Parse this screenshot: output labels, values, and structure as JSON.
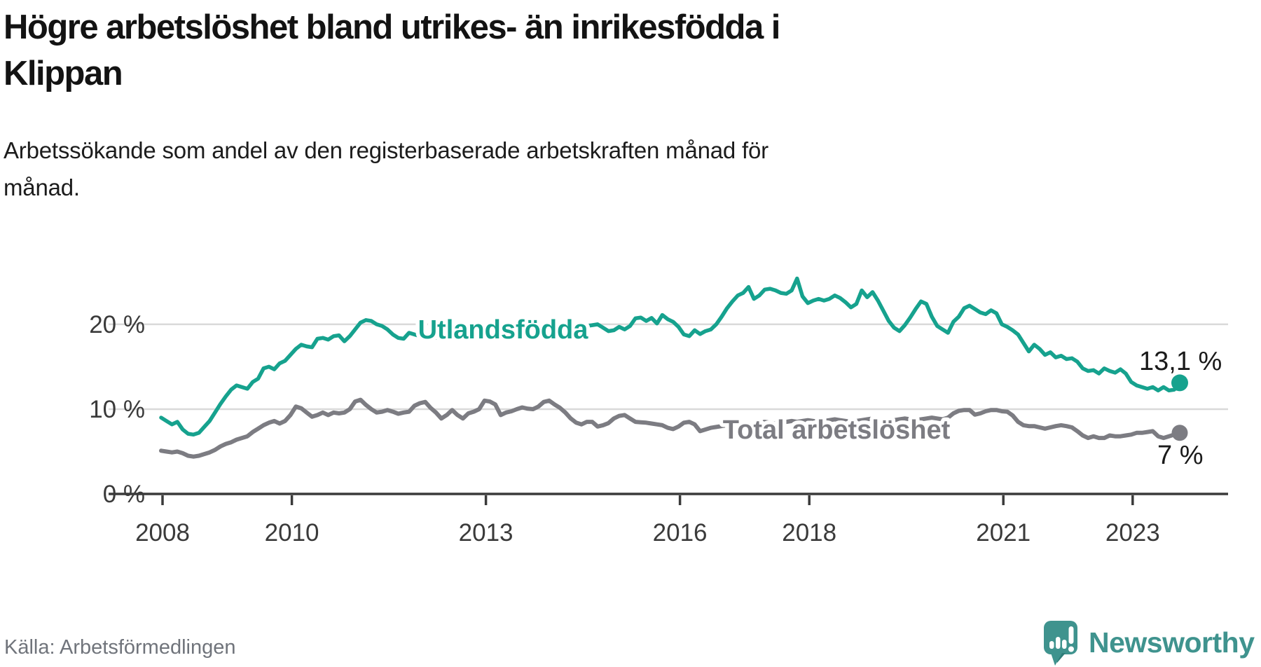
{
  "title": {
    "lines": [
      "Högre arbetslöshet bland utrikes- än inrikesfödda i",
      "Klippan"
    ]
  },
  "subtitle": {
    "lines": [
      "Arbetssökande som andel av den registerbaserade arbetskraften månad för",
      "månad."
    ]
  },
  "source_text": "Källa: Arbetsförmedlingen",
  "logo": {
    "text": "Newsworthy",
    "color": "#3f938e"
  },
  "chart_data": {
    "type": "line",
    "title": "Högre arbetslöshet bland utrikes- än inrikesfödda i Klippan",
    "subtitle": "Arbetssökande som andel av den registerbaserade arbetskraften månad för månad.",
    "frequency": "monthly",
    "x_start": "2008-01",
    "x_end": "2023-10",
    "x_ticks": [
      2008,
      2010,
      2013,
      2016,
      2018,
      2021,
      2023
    ],
    "y_ticks": [
      {
        "value": 0,
        "label": "0 %"
      },
      {
        "value": 10,
        "label": "10 %"
      },
      {
        "value": 20,
        "label": "20 %"
      }
    ],
    "ylim": [
      0,
      28
    ],
    "grid": "horizontal",
    "axis_color": "#3a3a3a",
    "grid_color": "#d9d9d9",
    "series": [
      {
        "name": "Utlandsfödda",
        "color": "#16a28e",
        "end_label": "13,1 %",
        "values": [
          9.0,
          8.6,
          8.2,
          8.5,
          7.6,
          7.1,
          7.0,
          7.2,
          7.9,
          8.6,
          9.6,
          10.6,
          11.5,
          12.3,
          12.8,
          12.6,
          12.4,
          13.2,
          13.6,
          14.8,
          15.0,
          14.7,
          15.4,
          15.7,
          16.4,
          17.1,
          17.6,
          17.4,
          17.3,
          18.3,
          18.4,
          18.2,
          18.6,
          18.7,
          18.0,
          18.6,
          19.4,
          20.2,
          20.5,
          20.4,
          20.0,
          19.8,
          19.4,
          18.8,
          18.4,
          18.3,
          19.0,
          18.8,
          18.6,
          18.8,
          18.6,
          18.4,
          18.5,
          18.7,
          18.6,
          18.9,
          19.0,
          18.8,
          19.0,
          19.2,
          19.4,
          19.6,
          19.4,
          19.2,
          19.0,
          19.3,
          19.2,
          19.4,
          19.6,
          19.5,
          19.3,
          19.5,
          19.7,
          19.8,
          19.6,
          19.4,
          19.5,
          19.7,
          19.5,
          19.8,
          19.9,
          20.0,
          19.6,
          19.2,
          19.3,
          19.7,
          19.4,
          19.8,
          20.7,
          20.8,
          20.4,
          20.75,
          20.1,
          21.1,
          20.6,
          20.3,
          19.7,
          18.8,
          18.6,
          19.3,
          18.85,
          19.2,
          19.4,
          20.0,
          20.9,
          21.9,
          22.7,
          23.4,
          23.7,
          24.4,
          23.0,
          23.4,
          24.1,
          24.2,
          24.0,
          23.7,
          23.6,
          24.0,
          25.4,
          23.3,
          22.5,
          22.8,
          23.0,
          22.8,
          23.0,
          23.4,
          23.1,
          22.6,
          22.0,
          22.4,
          24.0,
          23.2,
          23.8,
          22.8,
          21.6,
          20.4,
          19.6,
          19.2,
          19.9,
          20.8,
          21.8,
          22.7,
          22.4,
          20.9,
          19.8,
          19.4,
          19.0,
          20.3,
          20.9,
          21.9,
          22.2,
          21.8,
          21.4,
          21.2,
          21.65,
          21.3,
          20.0,
          19.7,
          19.3,
          18.8,
          17.8,
          16.8,
          17.6,
          17.1,
          16.4,
          16.7,
          16.1,
          16.3,
          15.9,
          16.0,
          15.6,
          14.8,
          14.5,
          14.6,
          14.2,
          14.8,
          14.5,
          14.3,
          14.7,
          14.2,
          13.2,
          12.8,
          12.6,
          12.4,
          12.6,
          12.2,
          12.6,
          12.2,
          12.3,
          13.1
        ]
      },
      {
        "name": "Total arbetslöshet",
        "color": "#7c7c82",
        "end_label": "7 %",
        "values": [
          5.1,
          5.0,
          4.9,
          5.0,
          4.8,
          4.5,
          4.4,
          4.5,
          4.7,
          4.9,
          5.2,
          5.6,
          5.9,
          6.1,
          6.4,
          6.6,
          6.8,
          7.3,
          7.7,
          8.1,
          8.4,
          8.6,
          8.3,
          8.6,
          9.3,
          10.3,
          10.1,
          9.6,
          9.1,
          9.3,
          9.6,
          9.3,
          9.6,
          9.5,
          9.6,
          10.0,
          10.9,
          11.1,
          10.5,
          10.0,
          9.6,
          9.7,
          9.9,
          9.7,
          9.45,
          9.6,
          9.7,
          10.4,
          10.7,
          10.85,
          10.15,
          9.6,
          8.9,
          9.3,
          9.9,
          9.3,
          8.9,
          9.5,
          9.7,
          10.0,
          11.0,
          10.9,
          10.55,
          9.3,
          9.6,
          9.75,
          10.0,
          10.2,
          10.05,
          10.0,
          10.3,
          10.85,
          11.0,
          10.55,
          10.15,
          9.6,
          8.9,
          8.4,
          8.2,
          8.5,
          8.5,
          7.95,
          8.1,
          8.35,
          8.9,
          9.2,
          9.3,
          8.9,
          8.5,
          8.45,
          8.4,
          8.3,
          8.2,
          8.1,
          7.8,
          7.65,
          7.95,
          8.4,
          8.5,
          8.2,
          7.4,
          7.6,
          7.8,
          7.9,
          8.0,
          8.1,
          8.0,
          8.1,
          8.2,
          8.3,
          8.2,
          8.4,
          8.5,
          8.4,
          8.3,
          8.4,
          8.5,
          8.6,
          8.5,
          8.6,
          8.7,
          8.6,
          8.5,
          8.6,
          8.7,
          8.8,
          8.7,
          8.6,
          8.5,
          8.6,
          8.7,
          8.8,
          8.9,
          8.8,
          8.7,
          8.6,
          8.7,
          8.8,
          8.9,
          8.8,
          8.7,
          8.8,
          8.9,
          9.0,
          8.9,
          8.8,
          9.0,
          9.5,
          9.8,
          9.9,
          9.9,
          9.35,
          9.5,
          9.75,
          9.9,
          9.9,
          9.75,
          9.7,
          9.25,
          8.5,
          8.1,
          8.0,
          8.0,
          7.85,
          7.7,
          7.85,
          8.0,
          8.1,
          8.0,
          7.85,
          7.4,
          6.9,
          6.6,
          6.8,
          6.6,
          6.6,
          6.9,
          6.8,
          6.8,
          6.9,
          7.0,
          7.2,
          7.2,
          7.3,
          7.4,
          6.8,
          6.6,
          6.8,
          7.0,
          7.2
        ]
      }
    ],
    "legend_position": "inline-labels"
  }
}
